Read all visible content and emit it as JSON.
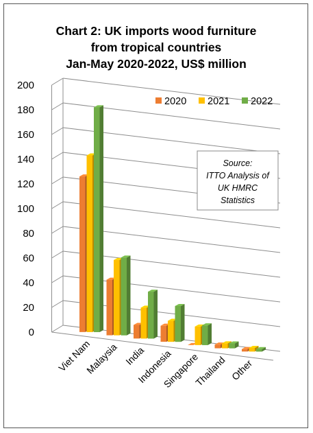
{
  "chart_data": {
    "type": "bar",
    "title": [
      "Chart 2: UK imports wood furniture",
      "from tropical countries",
      "Jan-May 2020-2022, US$ million"
    ],
    "categories": [
      "Viet Nam",
      "Malaysia",
      "India",
      "Indonesia",
      "Singapore",
      "Thailand",
      "Other"
    ],
    "series": [
      {
        "name": "2020",
        "values": [
          126,
          45,
          11,
          13,
          0,
          3,
          2
        ],
        "color": "#ED7D31"
      },
      {
        "name": "2021",
        "values": [
          143,
          61,
          25,
          17,
          15,
          4,
          3
        ],
        "color": "#FFC000"
      },
      {
        "name": "2022",
        "values": [
          182,
          63,
          38,
          29,
          16,
          4,
          2
        ],
        "color": "#70AD47"
      }
    ],
    "ylim": [
      0,
      200
    ],
    "yticks": [
      "0",
      "20",
      "40",
      "60",
      "80",
      "100",
      "120",
      "140",
      "160",
      "180",
      "200"
    ],
    "grid": true,
    "legend_position": "top-right",
    "annotation": [
      "Source:",
      "ITTO Analysis of",
      "UK HMRC",
      "Statistics"
    ]
  }
}
